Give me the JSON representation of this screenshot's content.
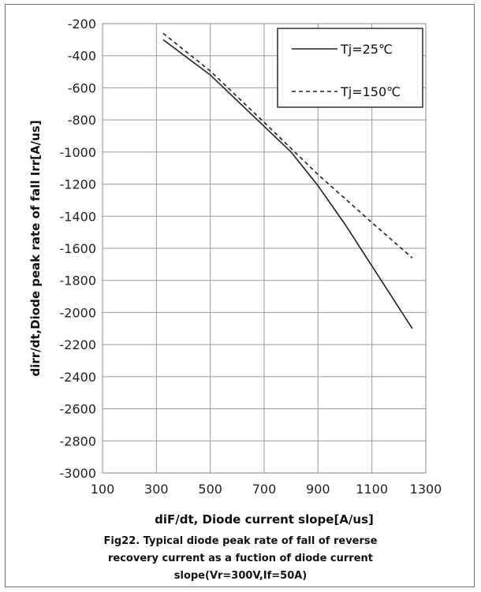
{
  "chart_data": {
    "type": "line",
    "xlabel": "diF/dt, Diode current slope[A/us]",
    "ylabel": "dirr/dt,Diode peak rate of fall Irr[A/us]",
    "xlim": [
      100,
      1300
    ],
    "ylim": [
      -3000,
      -200
    ],
    "xticks": [
      "100",
      "300",
      "500",
      "700",
      "900",
      "1100",
      "1300"
    ],
    "yticks": [
      "-200",
      "-400",
      "-600",
      "-800",
      "-1000",
      "-1200",
      "-1400",
      "-1600",
      "-1800",
      "-2000",
      "-2200",
      "-2400",
      "-2600",
      "-2800",
      "-3000"
    ],
    "grid": true,
    "legend_position": "top-right",
    "series": [
      {
        "name": "Tj=25℃",
        "style": "solid",
        "color": "#222222",
        "x": [
          325,
          500,
          700,
          800,
          900,
          1000,
          1100,
          1250
        ],
        "y": [
          -300,
          -520,
          -840,
          -1000,
          -1210,
          -1450,
          -1710,
          -2100
        ]
      },
      {
        "name": "Tj=150℃",
        "style": "dashed",
        "color": "#222222",
        "x": [
          325,
          500,
          700,
          900,
          1100,
          1250
        ],
        "y": [
          -260,
          -495,
          -815,
          -1140,
          -1440,
          -1660
        ]
      }
    ]
  },
  "caption": {
    "line1": "Fig22. Typical diode peak rate of fall of reverse",
    "line2": "recovery current as a fuction of diode current",
    "line3": "slope(Vr=300V,If=50A)"
  }
}
